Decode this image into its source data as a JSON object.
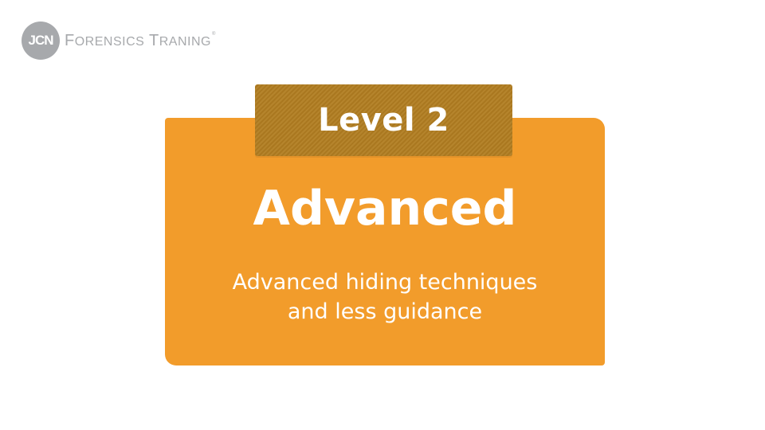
{
  "logo": {
    "badge_text": "JCN",
    "brand_first_cap": "F",
    "brand_first_rest": "ORENSICS",
    "brand_second_cap": "T",
    "brand_second_rest": "RANING",
    "registered_mark": "®"
  },
  "card": {
    "level_label": "Level 2",
    "title": "Advanced",
    "description_line1": "Advanced hiding techniques",
    "description_line2": "and less guidance"
  },
  "colors": {
    "card_orange": "#f29c2b",
    "tab_gold": "#b17d21",
    "logo_gray": "#a7a9ac",
    "text_white": "#ffffff"
  }
}
